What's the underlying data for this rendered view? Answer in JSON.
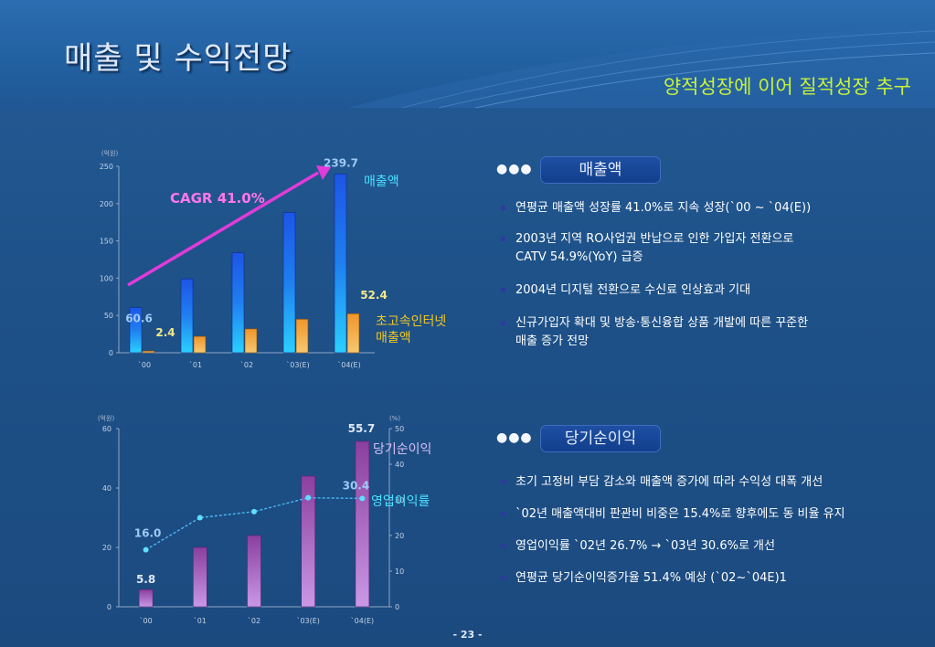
{
  "slide": {
    "title": "매출 및 수익전망",
    "subtitle": "양적성장에 이어 질적성장 추구",
    "page_number": "- 23 -"
  },
  "colors": {
    "background": "#1f5794",
    "subtitle": "#c8f23a",
    "revenue_bar": "#1a7ee8",
    "internet_bar": "#f0a52c",
    "net_income_bar": "#9b4fb0",
    "operating_margin_line": "#4ab8f5",
    "cagr_arrow": "#e13bd8",
    "cagr_text": "#ff77e8",
    "label_cyan": "#4ae0ff",
    "label_yellow": "#f2c81d",
    "label_lavender": "#d8c0f5"
  },
  "sections": [
    {
      "heading": "매출액",
      "bullets": [
        "연평균 매출액 성장률 41.0%로 지속 성장(`00 ~ `04(E))",
        "2003년 지역 RO사업권 반납으로 인한 가입자 전환으로\nCATV 54.9%(YoY) 급증",
        "2004년 디지털 전환으로 수신료 인상효과 기대",
        "신규가입자 확대 및 방송·통신융합 상품 개발에 따른 꾸준한\n매출 증가 전망"
      ]
    },
    {
      "heading": "당기순이익",
      "bullets": [
        "초기 고정비 부담 감소와 매출액 증가에 따라 수익성 대폭 개선",
        "`02년 매출액대비 판관비 비중은 15.4%로 향후에도 동 비율 유지",
        "영업이익률 `02년 26.7% → `03년 30.6%로 개선",
        "연평균 당기순이익증가율 51.4% 예상 (`02~`04E)1"
      ]
    }
  ],
  "chart_data": [
    {
      "type": "bar",
      "y_unit": "(억원)",
      "categories": [
        "`00",
        "`01",
        "`02",
        "`03(E)",
        "`04(E)"
      ],
      "yticks": [
        0,
        50,
        100,
        150,
        200,
        250
      ],
      "ylim": [
        0,
        250
      ],
      "series": [
        {
          "name": "매출액",
          "values": [
            60.6,
            99,
            134,
            188,
            239.7
          ],
          "data_labels": [
            "60.6",
            "",
            "",
            "",
            "239.7"
          ]
        },
        {
          "name": "초고속인터넷\n매출액",
          "values": [
            2.4,
            22,
            32,
            45,
            52.4
          ],
          "data_labels": [
            "2.4",
            "",
            "",
            "",
            "52.4"
          ]
        }
      ],
      "annotation": "CAGR 41.0%"
    },
    {
      "type": "bar+line",
      "y_unit_left": "(억원)",
      "y_unit_right": "(%)",
      "categories": [
        "`00",
        "`01",
        "`02",
        "`03(E)",
        "`04(E)"
      ],
      "yticks_left": [
        0,
        20,
        40,
        60
      ],
      "ylim_left": [
        0,
        60
      ],
      "yticks_right": [
        0,
        10,
        20,
        30,
        40,
        50
      ],
      "ylim_right": [
        0,
        50
      ],
      "series": [
        {
          "name": "당기순이익",
          "axis": "left",
          "values": [
            5.8,
            20,
            24,
            44,
            55.7
          ],
          "data_labels": [
            "5.8",
            "",
            "",
            "",
            "55.7"
          ]
        },
        {
          "name": "영업이익률",
          "axis": "right",
          "values": [
            16.0,
            25.0,
            26.7,
            30.6,
            30.4
          ],
          "data_labels": [
            "16.0",
            "",
            "",
            "",
            "30.4"
          ]
        }
      ]
    }
  ]
}
